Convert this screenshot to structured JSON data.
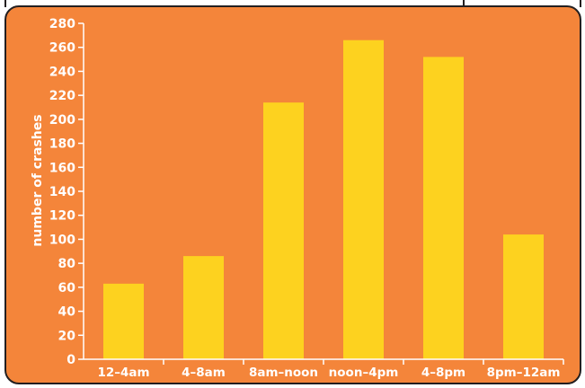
{
  "chart_data": {
    "type": "bar",
    "title": "",
    "xlabel": "",
    "ylabel": "number of crashes",
    "categories": [
      "12–4am",
      "4–8am",
      "8am–noon",
      "noon–4pm",
      "4–8pm",
      "8pm–12am"
    ],
    "values": [
      63,
      86,
      214,
      266,
      252,
      104
    ],
    "ylim": [
      0,
      280
    ],
    "yticks": [
      0,
      20,
      40,
      60,
      80,
      100,
      120,
      140,
      160,
      180,
      200,
      220,
      240,
      260,
      280
    ],
    "grid": false,
    "legend": "none"
  },
  "colors": {
    "background": "#f4853a",
    "bar": "#fdd21f",
    "axis": "#ffffff",
    "text": "#ffffff",
    "border": "#231f20"
  }
}
